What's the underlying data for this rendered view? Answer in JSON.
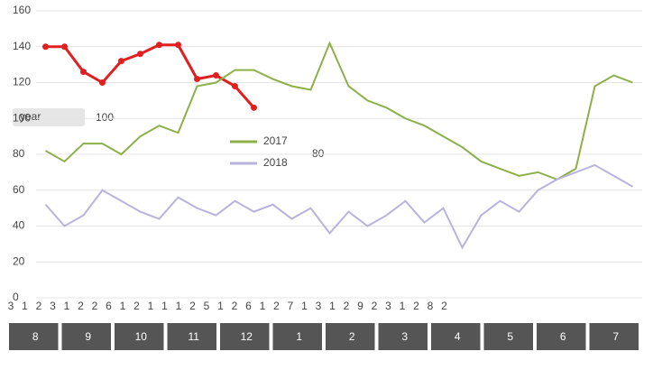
{
  "chart_data": {
    "type": "line",
    "categories": [
      "3",
      "1",
      "2",
      "3",
      "1",
      "2",
      "2",
      "6",
      "1",
      "2",
      "1",
      "1",
      "1",
      "2",
      "5",
      "1",
      "2",
      "6",
      "1",
      "2",
      "7",
      "1",
      "3",
      "1",
      "2",
      "9",
      "2",
      "3",
      "1",
      "2",
      "8",
      "2"
    ],
    "series": [
      {
        "color": "#e02020",
        "values": [
          140,
          140,
          126,
          120,
          132,
          136,
          141,
          141,
          122,
          124,
          118,
          106,
          null,
          null,
          null,
          null,
          null,
          null,
          null,
          null,
          null,
          null,
          null,
          null,
          null,
          null,
          null,
          null,
          null,
          null,
          null,
          null
        ]
      },
      {
        "name": "2017",
        "color": "#8cb04a",
        "values": [
          82,
          76,
          86,
          86,
          80,
          90,
          96,
          92,
          118,
          120,
          127,
          127,
          122,
          118,
          116,
          142,
          118,
          110,
          106,
          100,
          96,
          90,
          84,
          76,
          72,
          68,
          70,
          66,
          72,
          118,
          124,
          120
        ]
      },
      {
        "name": "2018",
        "color": "#b7b3dd",
        "values": [
          52,
          40,
          46,
          60,
          54,
          48,
          44,
          56,
          50,
          46,
          54,
          48,
          52,
          44,
          50,
          36,
          48,
          40,
          46,
          54,
          42,
          50,
          28,
          46,
          54,
          48,
          60,
          66,
          70,
          74,
          68,
          62
        ]
      }
    ],
    "ylim": [
      0,
      160
    ],
    "yticks": [
      0,
      20,
      40,
      60,
      80,
      100,
      120,
      140,
      160
    ],
    "grid": true,
    "filter_label": "year",
    "annotations": [
      "100",
      "80"
    ],
    "month_labels": [
      "8",
      "9",
      "10",
      "11",
      "12",
      "1",
      "2",
      "3",
      "4",
      "5",
      "6",
      "7"
    ]
  }
}
